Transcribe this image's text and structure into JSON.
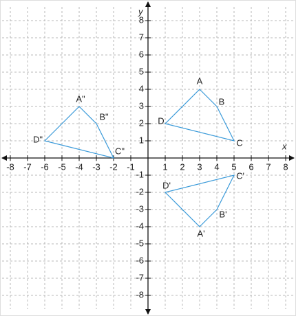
{
  "axes": {
    "x_label": "x",
    "y_label": "y",
    "xlim": [
      -8,
      8
    ],
    "ylim": [
      -8,
      8
    ],
    "xticks": [
      {
        "value": -8,
        "label": "-8"
      },
      {
        "value": -7,
        "label": "-7"
      },
      {
        "value": -6,
        "label": "-6"
      },
      {
        "value": -5,
        "label": "-5"
      },
      {
        "value": -4,
        "label": "-4"
      },
      {
        "value": -3,
        "label": "-3"
      },
      {
        "value": -2,
        "label": "-2"
      },
      {
        "value": -1,
        "label": "-1"
      },
      1,
      2,
      3,
      4,
      5,
      6,
      7,
      8
    ],
    "yticks": [
      {
        "value": -8,
        "label": "-8"
      },
      {
        "value": -7,
        "label": "-7"
      },
      {
        "value": -6,
        "label": "-6"
      },
      {
        "value": -5,
        "label": "-5"
      },
      {
        "value": -4,
        "label": "-4"
      },
      {
        "value": -3,
        "label": "-3"
      },
      {
        "value": -2,
        "label": "-2"
      },
      {
        "value": -1,
        "label": "-1"
      },
      1,
      2,
      3,
      4,
      5,
      6,
      7,
      8
    ]
  },
  "shapes": [
    {
      "color": "#3a9ad9",
      "vertices": [
        {
          "label": "A",
          "x": 3,
          "y": 4
        },
        {
          "label": "B",
          "x": 4,
          "y": 3
        },
        {
          "label": "C",
          "x": 5,
          "y": 1
        },
        {
          "label": "D",
          "x": 1,
          "y": 2
        }
      ]
    },
    {
      "color": "#3a9ad9",
      "vertices": [
        {
          "label": "A'",
          "x": 3,
          "y": -4
        },
        {
          "label": "B'",
          "x": 4,
          "y": -3
        },
        {
          "label": "C'",
          "x": 5,
          "y": -1
        },
        {
          "label": "D'",
          "x": 1,
          "y": -2
        }
      ]
    },
    {
      "color": "#3a9ad9",
      "vertices": [
        {
          "label": "A\"",
          "x": -4,
          "y": 3
        },
        {
          "label": "B\"",
          "x": -3,
          "y": 2
        },
        {
          "label": "C\"",
          "x": -2,
          "y": 0
        },
        {
          "label": "D\"",
          "x": -6,
          "y": 1
        }
      ]
    }
  ]
}
